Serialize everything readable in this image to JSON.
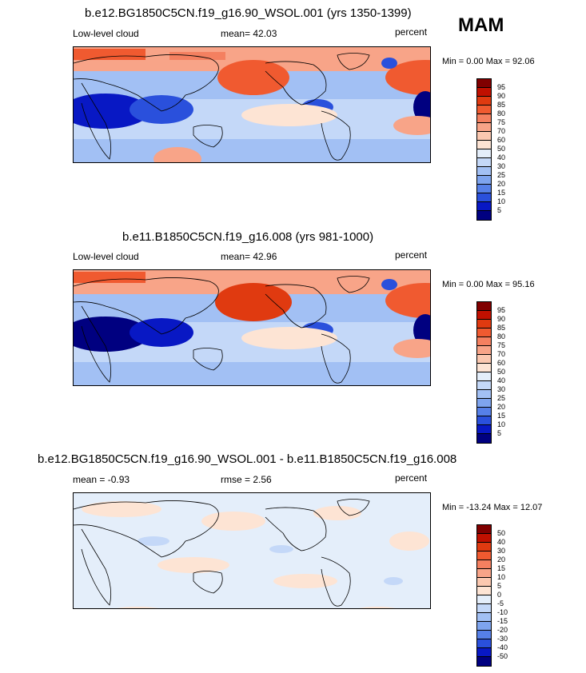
{
  "season": "MAM",
  "panels": [
    {
      "title": "b.e12.BG1850C5CN.f19_g16.90_WSOL.001 (yrs 1350-1399)",
      "left_label": "Low-level cloud",
      "center_label": "mean=  42.03",
      "right_label": "percent",
      "minmax": "Min =   0.00 Max =  92.06",
      "colorbar": {
        "ticks": [
          "95",
          "90",
          "85",
          "80",
          "75",
          "70",
          "60",
          "50",
          "40",
          "30",
          "25",
          "20",
          "15",
          "10",
          "5"
        ],
        "colors": [
          "#800000",
          "#c01000",
          "#e03a10",
          "#f05a30",
          "#f48060",
          "#f8a488",
          "#fbc8b0",
          "#fde4d4",
          "#e4eefa",
          "#c4d8f8",
          "#a2c0f4",
          "#7ea4ee",
          "#5680e8",
          "#2a50dc",
          "#0818c4",
          "#000080"
        ]
      }
    },
    {
      "title": "b.e11.B1850C5CN.f19_g16.008 (yrs 981-1000)",
      "left_label": "Low-level cloud",
      "center_label": "mean=  42.96",
      "right_label": "percent",
      "minmax": "Min =   0.00 Max =  95.16",
      "colorbar": {
        "ticks": [
          "95",
          "90",
          "85",
          "80",
          "75",
          "70",
          "60",
          "50",
          "40",
          "30",
          "25",
          "20",
          "15",
          "10",
          "5"
        ],
        "colors": [
          "#800000",
          "#c01000",
          "#e03a10",
          "#f05a30",
          "#f48060",
          "#f8a488",
          "#fbc8b0",
          "#fde4d4",
          "#e4eefa",
          "#c4d8f8",
          "#a2c0f4",
          "#7ea4ee",
          "#5680e8",
          "#2a50dc",
          "#0818c4",
          "#000080"
        ]
      }
    },
    {
      "title": "b.e12.BG1850C5CN.f19_g16.90_WSOL.001 - b.e11.B1850C5CN.f19_g16.008",
      "left_label": "mean =  -0.93",
      "center_label": "rmse =   2.56",
      "right_label": "percent",
      "minmax": "Min = -13.24 Max =  12.07",
      "colorbar": {
        "ticks": [
          "50",
          "40",
          "30",
          "20",
          "15",
          "10",
          "5",
          "0",
          "-5",
          "-10",
          "-15",
          "-20",
          "-30",
          "-40",
          "-50"
        ],
        "colors": [
          "#800000",
          "#c01000",
          "#e03a10",
          "#f05a30",
          "#f48060",
          "#f8a488",
          "#fbc8b0",
          "#fde4d4",
          "#e4eefa",
          "#c4d8f8",
          "#a2c0f4",
          "#7ea4ee",
          "#5680e8",
          "#2a50dc",
          "#0818c4",
          "#000080"
        ]
      }
    }
  ]
}
